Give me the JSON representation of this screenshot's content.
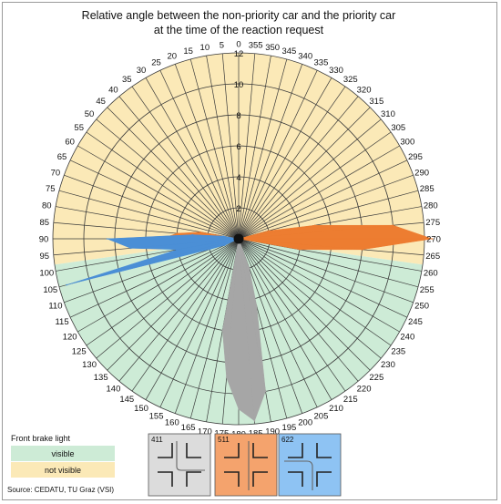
{
  "chart_data": {
    "type": "radar",
    "title_line1": "Relative angle between the non-priority car and the priority car",
    "title_line2": "at the time of the reaction request",
    "angle_labels": [
      "0",
      "5",
      "10",
      "15",
      "20",
      "25",
      "30",
      "35",
      "40",
      "45",
      "50",
      "55",
      "60",
      "65",
      "70",
      "75",
      "80",
      "85",
      "90",
      "95",
      "100",
      "105",
      "110",
      "115",
      "120",
      "125",
      "130",
      "135",
      "140",
      "145",
      "150",
      "155",
      "160",
      "165",
      "170",
      "175",
      "180",
      "185",
      "190",
      "195",
      "200",
      "205",
      "210",
      "215",
      "220",
      "225",
      "230",
      "235",
      "240",
      "245",
      "250",
      "255",
      "260",
      "265",
      "270",
      "275",
      "280",
      "285",
      "290",
      "295",
      "300",
      "305",
      "310",
      "315",
      "320",
      "325",
      "330",
      "335",
      "340",
      "345",
      "350",
      "355"
    ],
    "radial_ticks": [
      "0",
      "2",
      "4",
      "6",
      "8",
      "10",
      "12"
    ],
    "rmax": 12,
    "angle_direction": "counterclockwise, 0 at top",
    "regions": [
      {
        "name": "not visible",
        "from_angle": 262,
        "to_angle": 98,
        "color": "#fbe9b7"
      },
      {
        "name": "visible",
        "from_angle": 98,
        "to_angle": 262,
        "color": "#cdebd6"
      }
    ],
    "series": [
      {
        "name": "411",
        "color": "#a6a6a6",
        "angles": [
          170,
          175,
          180,
          185,
          190,
          195,
          200
        ],
        "values": [
          6,
          9,
          11,
          11.8,
          10,
          4.5,
          2
        ]
      },
      {
        "name": "511",
        "color": "#ed7d31",
        "angles": [
          80,
          85,
          90,
          95,
          100,
          260,
          265,
          270,
          275,
          280,
          285
        ],
        "values": [
          2.5,
          4,
          5,
          3,
          1,
          4,
          8,
          12.5,
          10,
          5,
          2
        ]
      },
      {
        "name": "622",
        "color": "#4b8fd6",
        "angles": [
          80,
          85,
          90,
          95,
          100,
          105,
          110,
          115
        ],
        "values": [
          1,
          3,
          8.5,
          7,
          4,
          11.5,
          2,
          1
        ]
      }
    ],
    "legend": {
      "title": "Front brake light",
      "items": [
        {
          "label": "visible",
          "color": "#cdebd6"
        },
        {
          "label": "not visible",
          "color": "#fbe9b7"
        }
      ]
    },
    "source": "Source: CEDATU, TU Graz (VSI)"
  },
  "scenarios": [
    {
      "id": "411",
      "bg": "#dcdcdc"
    },
    {
      "id": "511",
      "bg": "#f4a36d"
    },
    {
      "id": "622",
      "bg": "#8ec3f3"
    }
  ]
}
